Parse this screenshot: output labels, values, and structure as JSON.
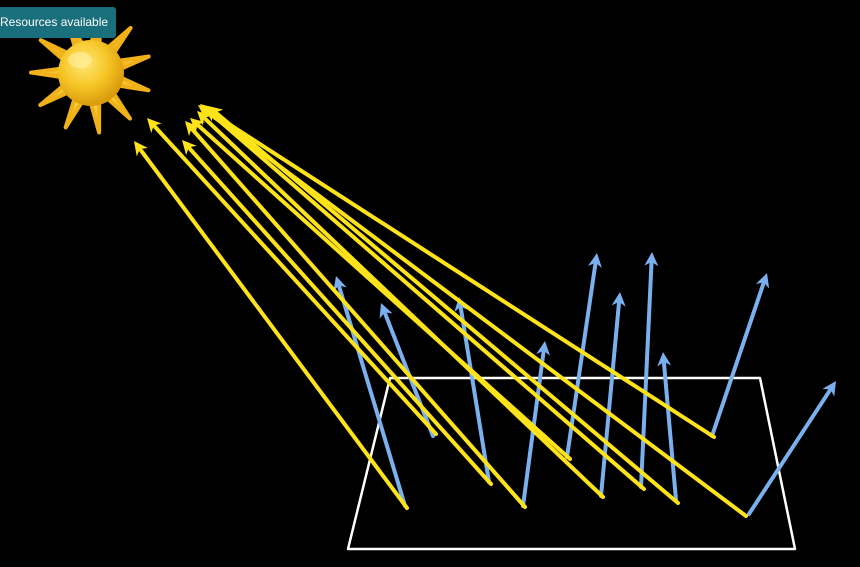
{
  "badge": {
    "label": "Resources available"
  },
  "scene": {
    "colors": {
      "background": "#000000",
      "sun": "#f6c525",
      "incoming_rays": "#ffe31a",
      "reflected_rays": "#7ab0ee",
      "surface_outline": "#ffffff",
      "badge": "#1a6f7c"
    },
    "icons": {
      "sun": "sun-icon"
    }
  }
}
